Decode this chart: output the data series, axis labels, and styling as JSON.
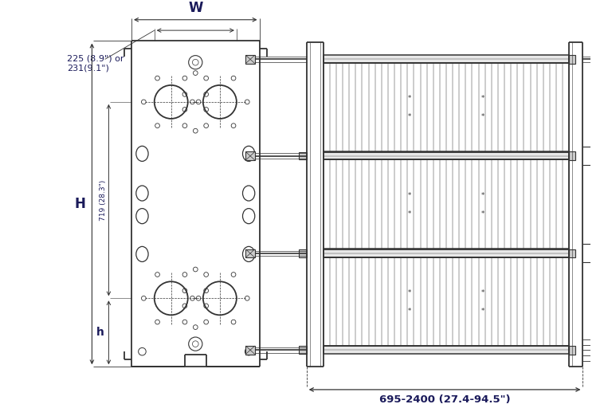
{
  "bg_color": "#ffffff",
  "line_color": "#333333",
  "dim_color": "#333333",
  "text_color": "#1a1a5a",
  "dim_W_label": "W",
  "dim_H_label": "H",
  "dim_h_label": "h",
  "dim_719_label": "719 (28.3\")",
  "dim_695_label": "695-2400 (27.4-94.5\")",
  "dim_225_label": "225 (8.9\") or\n231(9.1\")"
}
